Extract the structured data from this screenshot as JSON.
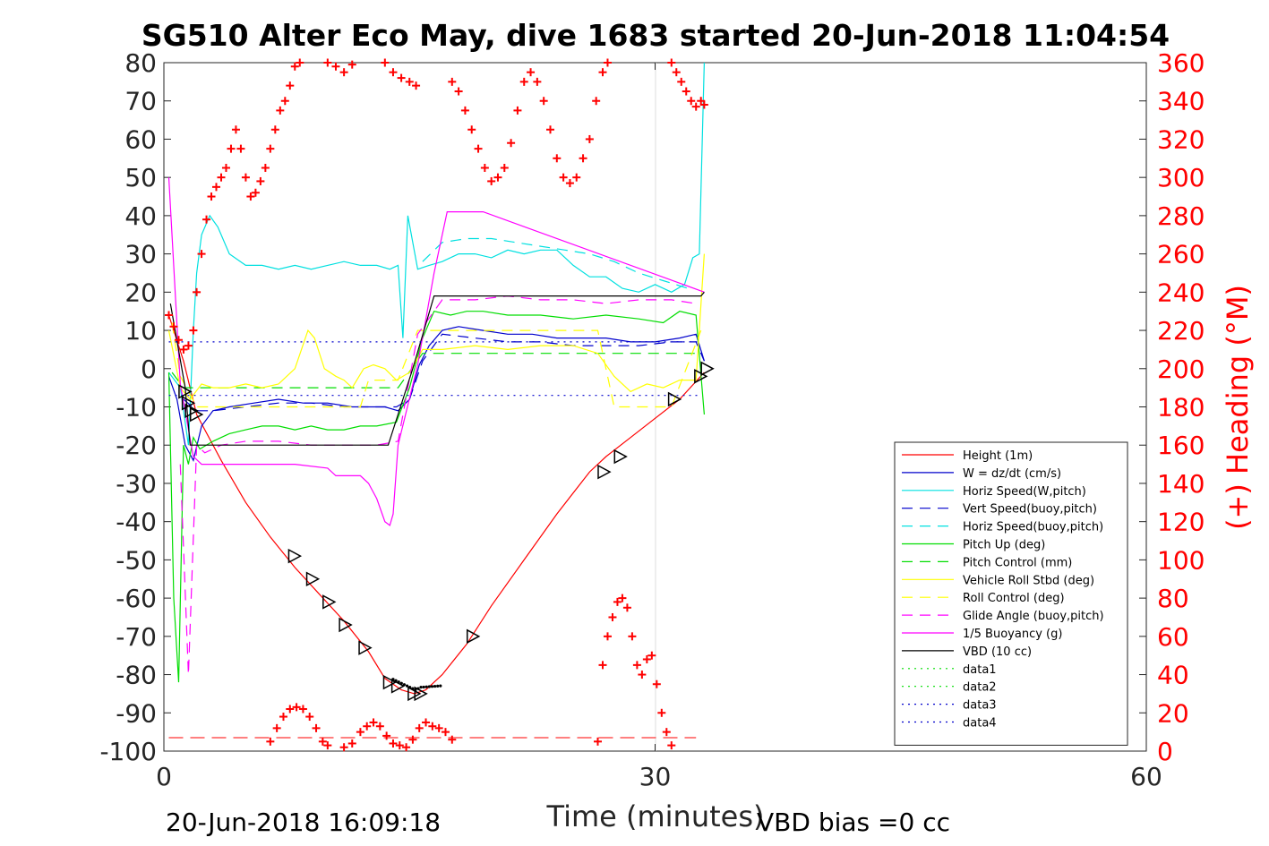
{
  "chart_data": {
    "type": "line",
    "title": "SG510 Alter Eco May, dive 1683 started 20-Jun-2018 11:04:54",
    "xlabel": "Time (minutes)",
    "ylabel_right": "(+) Heading (°M)",
    "xlim": [
      0,
      60
    ],
    "ylim": [
      -100,
      80
    ],
    "ylim_right": [
      0,
      360
    ],
    "xticks": [
      "0",
      "30",
      "60"
    ],
    "yticks": [
      "80",
      "70",
      "60",
      "50",
      "40",
      "30",
      "20",
      "10",
      "0",
      "-10",
      "-20",
      "-30",
      "-40",
      "-50",
      "-60",
      "-70",
      "-80",
      "-90",
      "-100"
    ],
    "yticks_right": [
      "360",
      "340",
      "320",
      "300",
      "280",
      "260",
      "240",
      "220",
      "200",
      "180",
      "160",
      "140",
      "120",
      "100",
      "80",
      "60",
      "40",
      "20",
      "0"
    ],
    "grid": "vertical at x=30",
    "legend_position": "bottom-right",
    "footer_left": "20-Jun-2018 16:09:18",
    "footer_right": "VBD bias =0 cc",
    "colors": {
      "height": "#ff0000",
      "w": "#0000cc",
      "horiz": "#00e0e0",
      "pitch": "#00dd00",
      "roll": "#ffff00",
      "glide": "#ff00ff",
      "vbd": "#000000",
      "heading": "#ff0000"
    },
    "series": [
      {
        "name": "Height (1m)",
        "color": "#ff0000",
        "dash": "solid",
        "x": [
          0.3,
          1.2,
          2.0,
          3.5,
          5.0,
          6.5,
          8.0,
          9.5,
          11.0,
          12.5,
          13.5,
          14.5,
          15.3,
          16.0,
          17.0,
          18.5,
          20.0,
          22.0,
          24.0,
          26.0,
          27.0,
          28.5,
          30.0,
          31.5,
          33.0
        ],
        "y": [
          14,
          2,
          -12,
          -24,
          -35,
          -44,
          -52,
          -59,
          -66,
          -74,
          -81,
          -84,
          -85,
          -84,
          -80,
          -72,
          -62,
          -50,
          -38,
          -27,
          -23,
          -18,
          -13,
          -8,
          -1
        ]
      },
      {
        "name": "W = dz/dt (cm/s)",
        "color": "#0000cc",
        "dash": "solid",
        "x": [
          0.3,
          0.8,
          1.3,
          1.8,
          2.3,
          3.0,
          4.0,
          5.5,
          7.0,
          8.5,
          10.0,
          11.5,
          12.5,
          13.5,
          14.3,
          15.0,
          15.6,
          16.2,
          17.0,
          18.0,
          19.5,
          21.0,
          22.5,
          24.0,
          25.5,
          27.0,
          28.5,
          30.0,
          31.5,
          32.5,
          33.0
        ],
        "y": [
          -2,
          -8,
          -20,
          -24,
          -15,
          -11,
          -10,
          -9,
          -8,
          -9,
          -9,
          -10,
          -10,
          -10,
          -11,
          -8,
          1,
          6,
          10,
          11,
          10,
          9,
          9,
          8,
          8,
          8,
          7,
          7,
          8,
          9,
          2
        ]
      },
      {
        "name": "Horiz Speed(W,pitch)",
        "color": "#00e0e0",
        "dash": "solid",
        "x": [
          0.3,
          1.0,
          1.5,
          1.8,
          2.0,
          2.3,
          2.8,
          3.3,
          4.0,
          5.0,
          6.0,
          7.0,
          8.0,
          9.0,
          10.0,
          11.0,
          12.0,
          13.0,
          13.8,
          14.3,
          14.6,
          14.9,
          15.5,
          16.2,
          17.0,
          18.0,
          19.0,
          20.0,
          21.0,
          22.0,
          23.0,
          24.0,
          25.0,
          26.0,
          27.0,
          28.0,
          29.0,
          30.0,
          31.0,
          31.8,
          32.3,
          32.7,
          33.0
        ],
        "y": [
          -1,
          -5,
          -20,
          10,
          25,
          35,
          40,
          37,
          30,
          27,
          27,
          26,
          27,
          26,
          27,
          28,
          27,
          27,
          26,
          27,
          8,
          40,
          26,
          27,
          28,
          30,
          30,
          29,
          31,
          30,
          31,
          31,
          27,
          24,
          24,
          21,
          20,
          22,
          20,
          22,
          29,
          30,
          80
        ]
      },
      {
        "name": "Vert Speed(buoy,pitch)",
        "color": "#0000cc",
        "dash": "dash",
        "x": [
          1.2,
          2.0,
          3.0,
          5.0,
          7.0,
          9.0,
          11.0,
          13.0,
          14.2,
          15.0,
          15.8,
          17.0,
          19.0,
          21.0,
          23.0,
          25.0,
          27.0,
          29.0,
          31.0,
          32.5,
          33.0
        ],
        "y": [
          -8,
          -11,
          -11,
          -10,
          -9,
          -9,
          -10,
          -10,
          -10,
          -8,
          2,
          9,
          8,
          7,
          7,
          6,
          6,
          6,
          7,
          7,
          2
        ]
      },
      {
        "name": "Horiz Speed(buoy,pitch)",
        "color": "#00e0e0",
        "dash": "dash",
        "x": [
          15.8,
          17.0,
          18.5,
          20.0,
          21.5,
          23.0,
          24.5,
          26.0,
          27.5,
          29.0,
          30.5,
          32.0
        ],
        "y": [
          28,
          33,
          34,
          34,
          33,
          32,
          31,
          30,
          28,
          25,
          23,
          21
        ]
      },
      {
        "name": "Pitch Up (deg)",
        "color": "#00dd00",
        "dash": "solid",
        "x": [
          0.3,
          0.6,
          0.9,
          1.2,
          1.5,
          1.8,
          2.2,
          3.0,
          4.0,
          5.0,
          6.0,
          7.0,
          8.0,
          9.0,
          10.0,
          11.0,
          12.0,
          13.0,
          14.2,
          15.0,
          15.8,
          16.5,
          17.5,
          18.5,
          19.5,
          21.0,
          23.0,
          25.0,
          27.0,
          29.0,
          30.5,
          31.5,
          32.5,
          33.0
        ],
        "y": [
          -1,
          -60,
          -82,
          -20,
          -25,
          -18,
          -21,
          -19,
          -17,
          -16,
          -15,
          -15,
          -16,
          -15,
          -16,
          -16,
          -15,
          -15,
          -14,
          -5,
          8,
          15,
          14,
          15,
          15,
          14,
          14,
          13,
          14,
          13,
          12,
          15,
          14,
          -12
        ]
      },
      {
        "name": "Pitch Control (mm)",
        "color": "#00dd00",
        "dash": "dash",
        "x": [
          0.5,
          1.2,
          14.3,
          15.8,
          32.8
        ],
        "y": [
          -1,
          -5,
          -5,
          4,
          4
        ]
      },
      {
        "name": "Vehicle Roll Stbd (deg)",
        "color": "#ffff00",
        "dash": "solid",
        "x": [
          0.3,
          1.0,
          1.6,
          2.3,
          3.0,
          4.0,
          5.0,
          6.0,
          7.0,
          8.0,
          8.8,
          9.2,
          9.8,
          10.5,
          11.0,
          11.5,
          12.2,
          12.8,
          13.5,
          14.2,
          15.0,
          15.8,
          17.0,
          19.0,
          21.0,
          23.0,
          25.0,
          26.5,
          27.5,
          28.5,
          29.5,
          30.5,
          31.5,
          32.5,
          33.0
        ],
        "y": [
          10,
          -5,
          -8,
          -4,
          -5,
          -5,
          -4,
          -5,
          -4,
          0,
          10,
          8,
          0,
          -2,
          -3,
          -5,
          0,
          1,
          0,
          -3,
          -1,
          5,
          5,
          6,
          5,
          6,
          6,
          4,
          -2,
          -6,
          -4,
          -5,
          -3,
          -3,
          30
        ]
      },
      {
        "name": "Roll Control (deg)",
        "color": "#ffff00",
        "dash": "dash",
        "x": [
          0.5,
          1.0,
          2.0,
          12.0,
          12.5,
          14.3,
          15.5,
          26.5,
          27.5,
          31.0,
          32.8
        ],
        "y": [
          12,
          -2,
          -10,
          -10,
          -3,
          -3,
          10,
          10,
          -10,
          -10,
          10
        ]
      },
      {
        "name": "Glide Angle (buoy,pitch)",
        "color": "#ff00ff",
        "dash": "dash",
        "x": [
          1.0,
          1.5,
          2.0,
          2.5,
          3.5,
          5.0,
          7.0,
          9.0,
          11.0,
          13.0,
          14.3,
          15.5,
          17.0,
          19.0,
          21.0,
          23.0,
          25.0,
          27.0,
          29.0,
          31.0,
          32.5
        ],
        "y": [
          -25,
          -80,
          -20,
          -22,
          -20,
          -19,
          -19,
          -20,
          -20,
          -20,
          -19,
          9,
          18,
          18,
          19,
          18,
          18,
          17,
          18,
          18,
          17
        ]
      },
      {
        "name": "1/5 Buoyancy (g)",
        "color": "#ff00ff",
        "dash": "solid",
        "x": [
          0.3,
          1.0,
          1.8,
          2.3,
          5.0,
          8.0,
          10.0,
          10.5,
          12.0,
          12.5,
          13.0,
          13.5,
          13.8,
          14.0,
          14.3,
          15.5,
          16.5,
          17.3,
          19.5,
          33.0
        ],
        "y": [
          50,
          -4,
          -23,
          -25,
          -25,
          -25,
          -26,
          -28,
          -28,
          -30,
          -34,
          -40,
          -41,
          -38,
          -20,
          1,
          25,
          41,
          41,
          20
        ]
      },
      {
        "name": "VBD (10 cc)",
        "color": "#000000",
        "dash": "solid",
        "x": [
          0.4,
          1.3,
          1.6,
          13.7,
          15.2,
          16.5,
          32.8,
          33.0
        ],
        "y": [
          17,
          -5,
          -20,
          -20,
          0,
          19,
          19,
          20
        ]
      },
      {
        "name": "data1",
        "color": "#00dd00",
        "dash": "dot",
        "x": [],
        "y": []
      },
      {
        "name": "data2",
        "color": "#00dd00",
        "dash": "dot",
        "x": [],
        "y": []
      },
      {
        "name": "data3",
        "color": "#0000cc",
        "dash": "dot",
        "x": [
          0.3,
          32.8
        ],
        "y": [
          7,
          7
        ]
      },
      {
        "name": "data4",
        "color": "#0000cc",
        "dash": "dot",
        "x": [
          0.3,
          32.8
        ],
        "y": [
          -7,
          -7
        ]
      }
    ],
    "apogee_line": {
      "color": "#ff0000",
      "x": [
        0.3,
        32.5
      ],
      "y_right": [
        7,
        7
      ]
    },
    "markers": {
      "x": [
        1.2,
        1.4,
        1.6,
        1.9,
        7.9,
        9.0,
        10.0,
        11.0,
        12.2,
        13.7,
        14.2,
        15.2,
        15.6,
        18.8,
        26.8,
        27.8,
        31.1,
        32.7,
        33.1
      ],
      "y": [
        -6,
        -9,
        -11,
        -12,
        -49,
        -55,
        -61,
        -67,
        -73,
        -82,
        -83,
        -85,
        -85,
        -70,
        -27,
        -23,
        -8,
        -2,
        0
      ]
    },
    "heading": {
      "name": "Heading",
      "x": [
        0.3,
        0.6,
        0.9,
        1.2,
        1.5,
        1.8,
        2.0,
        2.3,
        2.6,
        2.9,
        3.2,
        3.5,
        3.8,
        4.1,
        4.4,
        4.7,
        5.0,
        5.3,
        5.6,
        5.9,
        6.2,
        6.5,
        6.8,
        7.1,
        7.4,
        7.7,
        8.0,
        8.3,
        10.0,
        10.5,
        11.0,
        11.5,
        13.5,
        14.0,
        14.5,
        15.0,
        15.4,
        17.6,
        18.0,
        18.4,
        18.8,
        19.2,
        19.6,
        20.0,
        20.4,
        20.8,
        21.2,
        21.6,
        22.0,
        22.4,
        22.8,
        23.2,
        23.6,
        24.0,
        24.4,
        24.8,
        25.2,
        25.6,
        26.0,
        26.4,
        26.8,
        27.1,
        31.0,
        31.3,
        31.6,
        31.9,
        32.2,
        32.5,
        32.8,
        33.0
      ],
      "y": [
        228,
        222,
        215,
        210,
        212,
        220,
        240,
        260,
        278,
        290,
        295,
        300,
        305,
        315,
        325,
        315,
        300,
        290,
        292,
        298,
        305,
        315,
        325,
        335,
        340,
        348,
        358,
        362,
        360,
        358,
        355,
        359,
        360,
        355,
        352,
        350,
        348,
        350,
        345,
        335,
        325,
        315,
        305,
        298,
        300,
        305,
        318,
        335,
        350,
        355,
        350,
        340,
        325,
        310,
        300,
        297,
        300,
        310,
        320,
        340,
        355,
        361,
        362,
        355,
        350,
        345,
        340,
        337,
        340,
        338
      ],
      "x_low": [
        6.5,
        6.9,
        7.3,
        7.7,
        8.1,
        8.5,
        8.9,
        9.3,
        9.7,
        10.0,
        11.0,
        11.5,
        12.0,
        12.4,
        12.8,
        13.2,
        13.6,
        14.0,
        14.4,
        14.8,
        15.2,
        15.6,
        16.0,
        16.4,
        16.8,
        17.2,
        17.6,
        26.5,
        26.8,
        27.1,
        27.4,
        27.7,
        28.0,
        28.3,
        28.6,
        28.9,
        29.2,
        29.5,
        29.8,
        30.1,
        30.4,
        30.7,
        31.0
      ],
      "y_low": [
        5,
        12,
        18,
        22,
        23,
        22,
        18,
        12,
        5,
        3,
        2,
        4,
        10,
        13,
        15,
        13,
        8,
        4,
        3,
        2,
        6,
        12,
        15,
        13,
        12,
        10,
        6,
        5,
        45,
        60,
        70,
        78,
        80,
        75,
        60,
        45,
        40,
        48,
        50,
        35,
        20,
        10,
        3
      ]
    }
  }
}
